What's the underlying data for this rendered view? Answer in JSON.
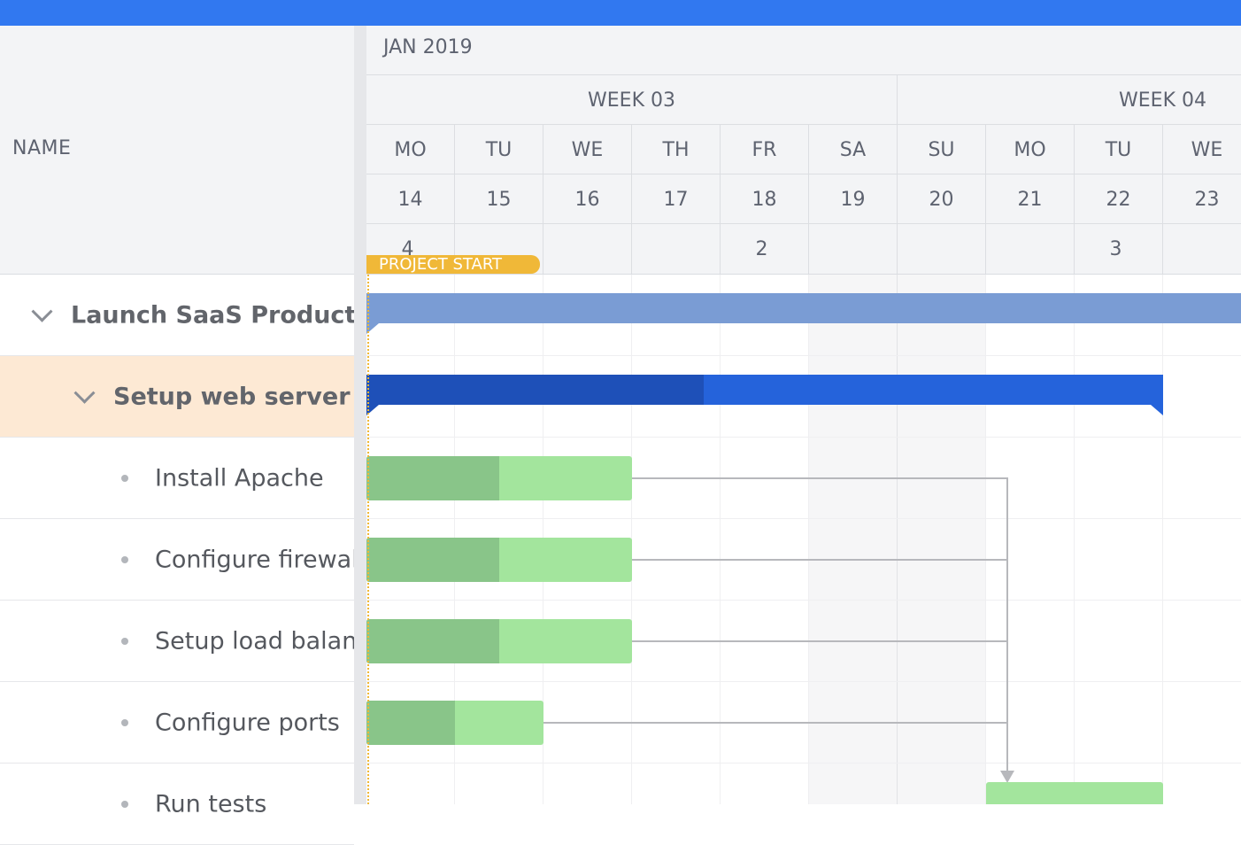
{
  "grid": {
    "column_name": "NAME",
    "rows": [
      {
        "label": "Launch SaaS Product",
        "type": "parent",
        "expanded": true
      },
      {
        "label": "Setup web server",
        "type": "parent",
        "expanded": true,
        "selected": true
      },
      {
        "label": "Install Apache",
        "type": "task"
      },
      {
        "label": "Configure firewall",
        "type": "task"
      },
      {
        "label": "Setup load balancer",
        "type": "task"
      },
      {
        "label": "Configure ports",
        "type": "task"
      },
      {
        "label": "Run tests",
        "type": "task"
      }
    ]
  },
  "timeline": {
    "month": "JAN 2019",
    "weeks": [
      "WEEK 03",
      "WEEK 04"
    ],
    "days": [
      {
        "abbr": "MO",
        "date": "14",
        "count": "4"
      },
      {
        "abbr": "TU",
        "date": "15",
        "count": ""
      },
      {
        "abbr": "WE",
        "date": "16",
        "count": ""
      },
      {
        "abbr": "TH",
        "date": "17",
        "count": ""
      },
      {
        "abbr": "FR",
        "date": "18",
        "count": "2"
      },
      {
        "abbr": "SA",
        "date": "19",
        "count": ""
      },
      {
        "abbr": "SU",
        "date": "20",
        "count": ""
      },
      {
        "abbr": "MO",
        "date": "21",
        "count": ""
      },
      {
        "abbr": "TU",
        "date": "22",
        "count": "3"
      },
      {
        "abbr": "WE",
        "date": "23",
        "count": ""
      }
    ],
    "project_start_label": "PROJECT START"
  },
  "colors": {
    "topbar": "#3178f0",
    "summary_main": "#7a9cd4",
    "summary_sub": "#2563db",
    "task": "#a3e59d",
    "task_done": "#89c589",
    "project_start": "#f0b838",
    "selected_row": "#fde9d4"
  }
}
